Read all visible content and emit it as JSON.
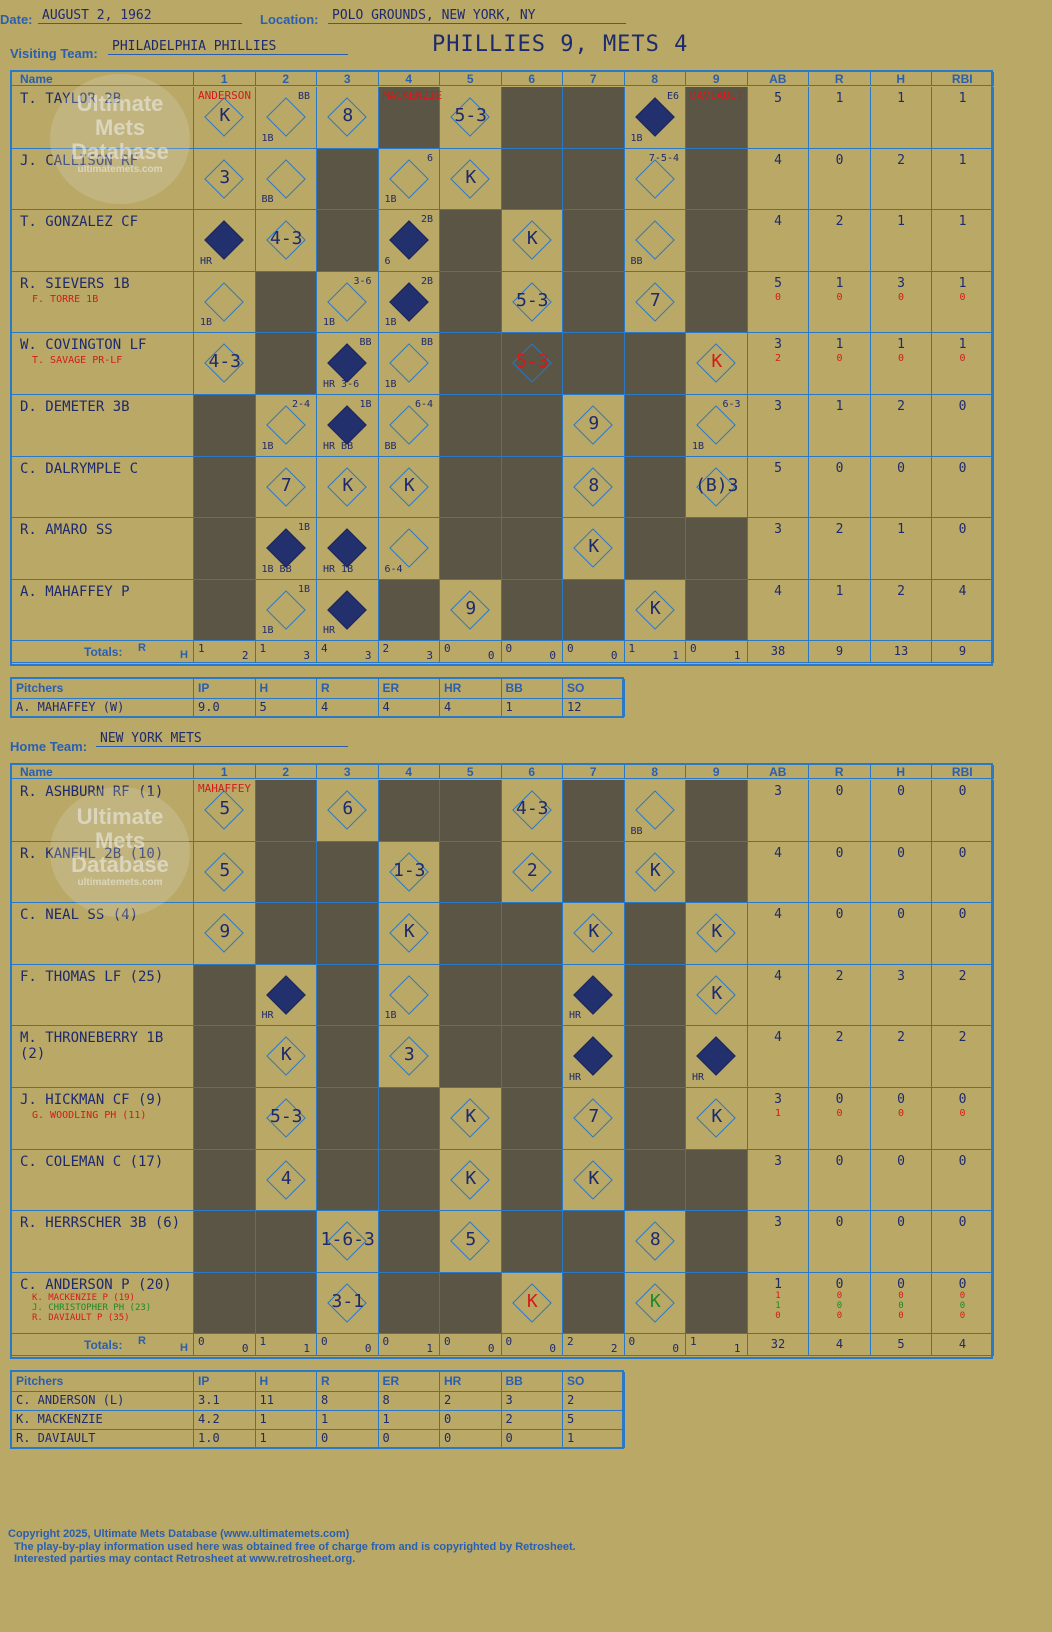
{
  "header": {
    "date_label": "Date:",
    "date": "AUGUST 2, 1962",
    "location_label": "Location:",
    "location": "POLO GROUNDS, NEW YORK, NY",
    "visiting_label": "Visiting Team:",
    "visiting_team": "PHILADELPHIA PHILLIES",
    "result": "PHILLIES 9, METS 4",
    "home_label": "Home Team:",
    "home_team": "NEW YORK METS"
  },
  "columns": {
    "name": "Name",
    "innings": [
      "1",
      "2",
      "3",
      "4",
      "5",
      "6",
      "7",
      "8",
      "9"
    ],
    "stats": [
      "AB",
      "R",
      "H",
      "RBI"
    ],
    "totals_label": "Totals:",
    "r": "R",
    "h": "H"
  },
  "watermark": {
    "line1": "Ultimate",
    "line2": "Mets",
    "line3": "Database",
    "url": "ultimatemets.com"
  },
  "visitors": {
    "players": [
      {
        "name": "T. TAYLOR 2B",
        "sub": "",
        "stats": [
          "5",
          "1",
          "1",
          "1"
        ],
        "sub_stats": []
      },
      {
        "name": "J. CALLISON RF",
        "sub": "",
        "stats": [
          "4",
          "0",
          "2",
          "1"
        ],
        "sub_stats": []
      },
      {
        "name": "T. GONZALEZ CF",
        "sub": "",
        "stats": [
          "4",
          "2",
          "1",
          "1"
        ],
        "sub_stats": []
      },
      {
        "name": "R. SIEVERS 1B",
        "sub": "F. TORRE 1B",
        "stats": [
          "5",
          "1",
          "3",
          "1"
        ],
        "sub_stats": [
          "0",
          "0",
          "0",
          "0"
        ]
      },
      {
        "name": "W. COVINGTON LF",
        "sub": "T. SAVAGE PR-LF",
        "stats": [
          "3",
          "1",
          "1",
          "1"
        ],
        "sub_stats": [
          "2",
          "0",
          "0",
          "0"
        ]
      },
      {
        "name": "D. DEMETER 3B",
        "sub": "",
        "stats": [
          "3",
          "1",
          "2",
          "0"
        ],
        "sub_stats": []
      },
      {
        "name": "C. DALRYMPLE C",
        "sub": "",
        "stats": [
          "5",
          "0",
          "0",
          "0"
        ],
        "sub_stats": []
      },
      {
        "name": "R. AMARO SS",
        "sub": "",
        "stats": [
          "3",
          "2",
          "1",
          "0"
        ],
        "sub_stats": []
      },
      {
        "name": "A. MAHAFFEY P",
        "sub": "",
        "stats": [
          "4",
          "1",
          "2",
          "4"
        ],
        "sub_stats": []
      }
    ],
    "totals": [
      [
        "1",
        "2"
      ],
      [
        "1",
        "3"
      ],
      [
        "4",
        "3"
      ],
      [
        "2",
        "3"
      ],
      [
        "0",
        "0"
      ],
      [
        "0",
        "0"
      ],
      [
        "0",
        "0"
      ],
      [
        "1",
        "1"
      ],
      [
        "0",
        "1"
      ]
    ],
    "stat_totals": [
      "38",
      "9",
      "13",
      "9"
    ],
    "pitchers_label": "Pitchers",
    "pitcher_cols": [
      "IP",
      "H",
      "R",
      "ER",
      "HR",
      "BB",
      "SO"
    ],
    "pitchers": [
      {
        "name": "A. MAHAFFEY (W)",
        "vals": [
          "9.0",
          "5",
          "4",
          "4",
          "4",
          "1",
          "12"
        ]
      }
    ]
  },
  "home": {
    "players": [
      {
        "name": "R. ASHBURN RF (1)",
        "sub": "",
        "stats": [
          "3",
          "0",
          "0",
          "0"
        ],
        "sub_stats": []
      },
      {
        "name": "R. KANEHL 2B (10)",
        "sub": "",
        "stats": [
          "4",
          "0",
          "0",
          "0"
        ],
        "sub_stats": []
      },
      {
        "name": "C. NEAL SS (4)",
        "sub": "",
        "stats": [
          "4",
          "0",
          "0",
          "0"
        ],
        "sub_stats": []
      },
      {
        "name": "F. THOMAS LF (25)",
        "sub": "",
        "stats": [
          "4",
          "2",
          "3",
          "2"
        ],
        "sub_stats": []
      },
      {
        "name": "M. THRONEBERRY 1B (2)",
        "sub": "",
        "stats": [
          "4",
          "2",
          "2",
          "2"
        ],
        "sub_stats": []
      },
      {
        "name": "J. HICKMAN CF (9)",
        "sub": "G. WOODLING PH (11)",
        "stats": [
          "3",
          "0",
          "0",
          "0"
        ],
        "sub_stats": [
          "1",
          "0",
          "0",
          "0"
        ]
      },
      {
        "name": "C. COLEMAN C (17)",
        "sub": "",
        "stats": [
          "3",
          "0",
          "0",
          "0"
        ],
        "sub_stats": []
      },
      {
        "name": "R. HERRSCHER 3B (6)",
        "sub": "",
        "stats": [
          "3",
          "0",
          "0",
          "0"
        ],
        "sub_stats": []
      },
      {
        "name": "C. ANDERSON P (20)",
        "sub": "",
        "stats": [
          "1",
          "0",
          "0",
          "0"
        ],
        "sub_stats": []
      }
    ],
    "anderson_subs": [
      {
        "name": "K. MACKENZIE P (19)",
        "stats": [
          "1",
          "0",
          "0",
          "0"
        ]
      },
      {
        "name": "J. CHRISTOPHER PH (23)",
        "stats": [
          "1",
          "0",
          "0",
          "0"
        ]
      },
      {
        "name": "R. DAVIAULT P (35)",
        "stats": [
          "0",
          "0",
          "0",
          "0"
        ]
      }
    ],
    "totals": [
      [
        "0",
        "0"
      ],
      [
        "1",
        "1"
      ],
      [
        "0",
        "0"
      ],
      [
        "0",
        "1"
      ],
      [
        "0",
        "0"
      ],
      [
        "0",
        "0"
      ],
      [
        "2",
        "2"
      ],
      [
        "0",
        "0"
      ],
      [
        "1",
        "1"
      ]
    ],
    "stat_totals": [
      "32",
      "4",
      "5",
      "4"
    ],
    "pitchers_label": "Pitchers",
    "pitcher_cols": [
      "IP",
      "H",
      "R",
      "ER",
      "HR",
      "BB",
      "SO"
    ],
    "pitchers": [
      {
        "name": "C. ANDERSON (L)",
        "vals": [
          "3.1",
          "11",
          "8",
          "8",
          "2",
          "3",
          "2"
        ]
      },
      {
        "name": "K. MACKENZIE",
        "vals": [
          "4.2",
          "1",
          "1",
          "1",
          "0",
          "2",
          "5"
        ]
      },
      {
        "name": "R. DAVIAULT",
        "vals": [
          "1.0",
          "1",
          "0",
          "0",
          "0",
          "0",
          "1"
        ]
      }
    ]
  },
  "pitcher_changes": {
    "v1": "ANDERSON",
    "v4": "MACKENZIE",
    "v9": "DAVIAULT",
    "h1": "MAHAFFEY"
  },
  "footer": {
    "line1": "Copyright 2025, Ultimate Mets Database (www.ultimatemets.com)",
    "line2": "The play-by-play information used here was obtained free of charge from and is copyrighted by Retrosheet.",
    "line3": "Interested parties may contact Retrosheet at www.retrosheet.org."
  },
  "colors": {
    "paper": "#b9a866",
    "grid": "#2a78c8",
    "ink": "#1e2a6e",
    "dark_cell": "#5a5544",
    "red": "#d41a1a",
    "green": "#1b8a2a"
  }
}
